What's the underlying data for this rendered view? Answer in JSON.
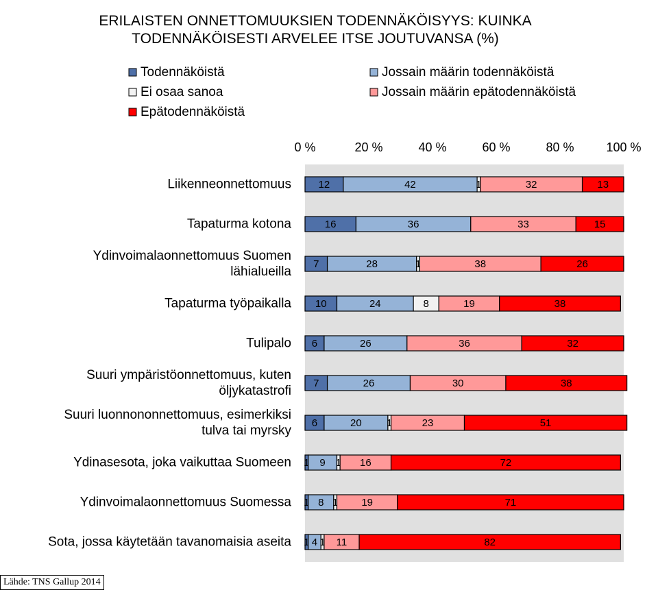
{
  "chart_data": {
    "type": "stacked-bar-horizontal",
    "title": "ERILAISTEN ONNETTOMUUKSIEN TODENNÄKÖISYYS: KUINKA\nTODENNÄKÖISESTI ARVELEE ITSE JOUTUVANSA (%)",
    "categories": [
      "Liikenneonnettomuus",
      "Tapaturma kotona",
      "Ydinvoimalaonnettomuus Suomen\nlähialueilla",
      "Tapaturma työpaikalla",
      "Tulipalo",
      "Suuri ympäristöonnettomuus, kuten\nöljykatastrofi",
      "Suuri luonnononnettomuus, esimerkiksi\ntulva tai myrsky",
      "Ydinasesota, joka vaikuttaa Suomeen",
      "Ydinvoimalaonnettomuus Suomessa",
      "Sota, jossa käytetään tavanomaisia aseita"
    ],
    "series": [
      {
        "name": "Todennäköistä",
        "color": "#4f70a8",
        "values": [
          12,
          16,
          7,
          10,
          6,
          7,
          6,
          1,
          1,
          1
        ]
      },
      {
        "name": "Jossain määrin todennäköistä",
        "color": "#95b3d7",
        "values": [
          42,
          36,
          28,
          24,
          26,
          26,
          20,
          9,
          8,
          4
        ]
      },
      {
        "name": "Ei osaa sanoa",
        "color": "#f2f2f2",
        "values": [
          1,
          0,
          1,
          8,
          0,
          0,
          1,
          1,
          1,
          1
        ]
      },
      {
        "name": "Jossain määrin epätodennäköistä",
        "color": "#ff9999",
        "values": [
          32,
          33,
          38,
          19,
          36,
          30,
          23,
          16,
          19,
          11
        ]
      },
      {
        "name": "Epätodennäköistä",
        "color": "#ff0000",
        "values": [
          13,
          15,
          26,
          38,
          32,
          38,
          51,
          72,
          71,
          82
        ]
      }
    ],
    "xlim": [
      0,
      100
    ],
    "xticks": [
      {
        "value": 0,
        "label": "0 %"
      },
      {
        "value": 20,
        "label": "20 %"
      },
      {
        "value": 40,
        "label": "40 %"
      },
      {
        "value": 60,
        "label": "60 %"
      },
      {
        "value": 80,
        "label": "80 %"
      },
      {
        "value": 100,
        "label": "100 %"
      }
    ],
    "source": "Lähde: TNS Gallup 2014"
  }
}
